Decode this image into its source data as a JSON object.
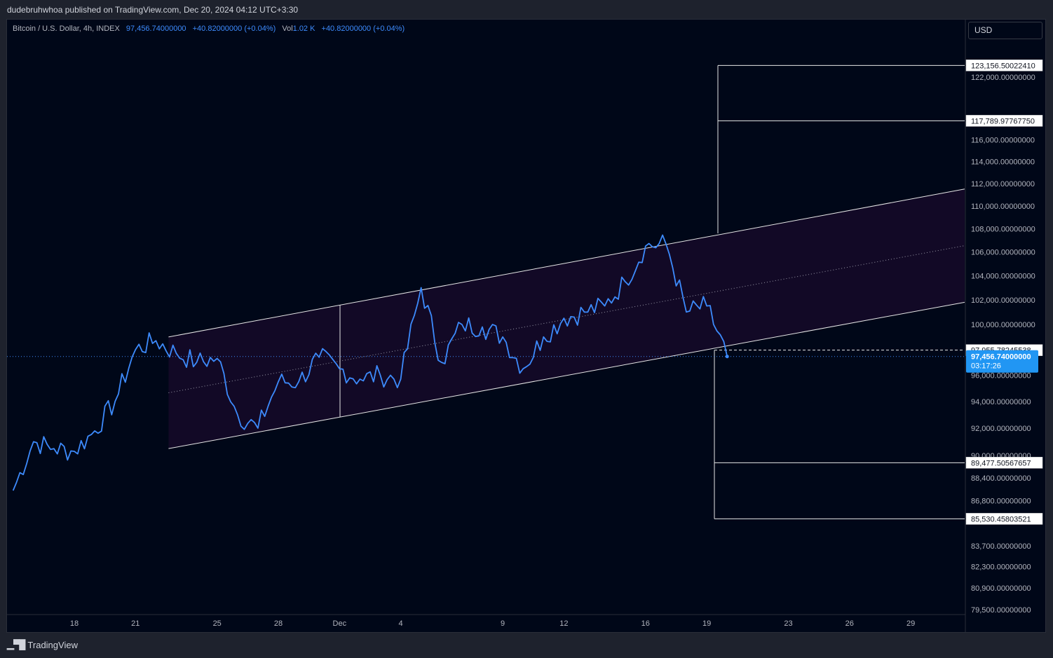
{
  "publisher_line": "dudebruhwhoa published on TradingView.com, Dec 20, 2024 04:12 UTC+3:30",
  "legend": {
    "symbol": "Bitcoin / U.S. Dollar, 4h, INDEX",
    "price": "97,456.74000000",
    "change": "+40.82000000 (+0.04%)",
    "volume_label": "Vol",
    "volume": "1.02 K",
    "volume_change": "+40.82000000 (+0.04%)"
  },
  "currency": "USD",
  "branding": "TradingView",
  "colors": {
    "background": "#000718",
    "series": "#3d8bfd",
    "channel_fill": "#140a28",
    "lines": "#e6e6e6",
    "label_bg": "#ffffff",
    "price_badge": "#2196f3"
  },
  "chart_data": {
    "type": "line",
    "title": "Bitcoin / U.S. Dollar, 4h, INDEX",
    "xlabel": "",
    "ylabel": "",
    "x_ticks": [
      "18",
      "21",
      "25",
      "28",
      "Dec",
      "4",
      "9",
      "12",
      "16",
      "19",
      "23",
      "26",
      "29"
    ],
    "y_ticks": [
      "122,000.00000000",
      "116,000.00000000",
      "114,000.00000000",
      "112,000.00000000",
      "110,000.00000000",
      "108,000.00000000",
      "106,000.00000000",
      "104,000.00000000",
      "102,000.00000000",
      "100,000.00000000",
      "96,000.00000000",
      "94,000.00000000",
      "92,000.00000000",
      "90,000.00000000",
      "88,400.00000000",
      "86,800.00000000",
      "83,700.00000000",
      "82,300.00000000",
      "80,900.00000000",
      "79,500.00000000"
    ],
    "scale": "log",
    "grid": false,
    "series": [
      {
        "x": [
          "Nov 15",
          "Nov 16",
          "Nov 17",
          "Nov 18",
          "Nov 19",
          "Nov 20",
          "Nov 21",
          "Nov 22",
          "Nov 23",
          "Nov 24",
          "Nov 25",
          "Nov 26",
          "Nov 27",
          "Nov 28",
          "Nov 29",
          "Nov 30",
          "Dec 1",
          "Dec 2",
          "Dec 3",
          "Dec 4",
          "Dec 5",
          "Dec 6",
          "Dec 7",
          "Dec 8",
          "Dec 9",
          "Dec 10",
          "Dec 11",
          "Dec 12",
          "Dec 13",
          "Dec 14",
          "Dec 15",
          "Dec 16",
          "Dec 17",
          "Dec 18",
          "Dec 19",
          "Dec 20"
        ],
        "y": [
          87500,
          91000,
          90500,
          90300,
          91800,
          94000,
          98000,
          98700,
          97700,
          97000,
          97300,
          93000,
          92000,
          95500,
          95500,
          97400,
          96500,
          95700,
          96000,
          95700,
          103000,
          97000,
          100000,
          99800,
          99000,
          96500,
          99000,
          100500,
          101000,
          101500,
          103500,
          106500,
          106700,
          101000,
          101500,
          97456.74
        ]
      }
    ],
    "channel": {
      "upper_start": 99000,
      "upper_end": 111500,
      "lower_start": 90500,
      "lower_end": 101800,
      "start": "Nov 22",
      "end": "Dec 30"
    },
    "levels": [
      "123,156.50022410",
      "117,789.97767750",
      "97,955.78245538",
      "89,477.50567657",
      "85,530.45803521"
    ],
    "last_price": "97,456.74000000",
    "countdown": "03:17:26"
  }
}
